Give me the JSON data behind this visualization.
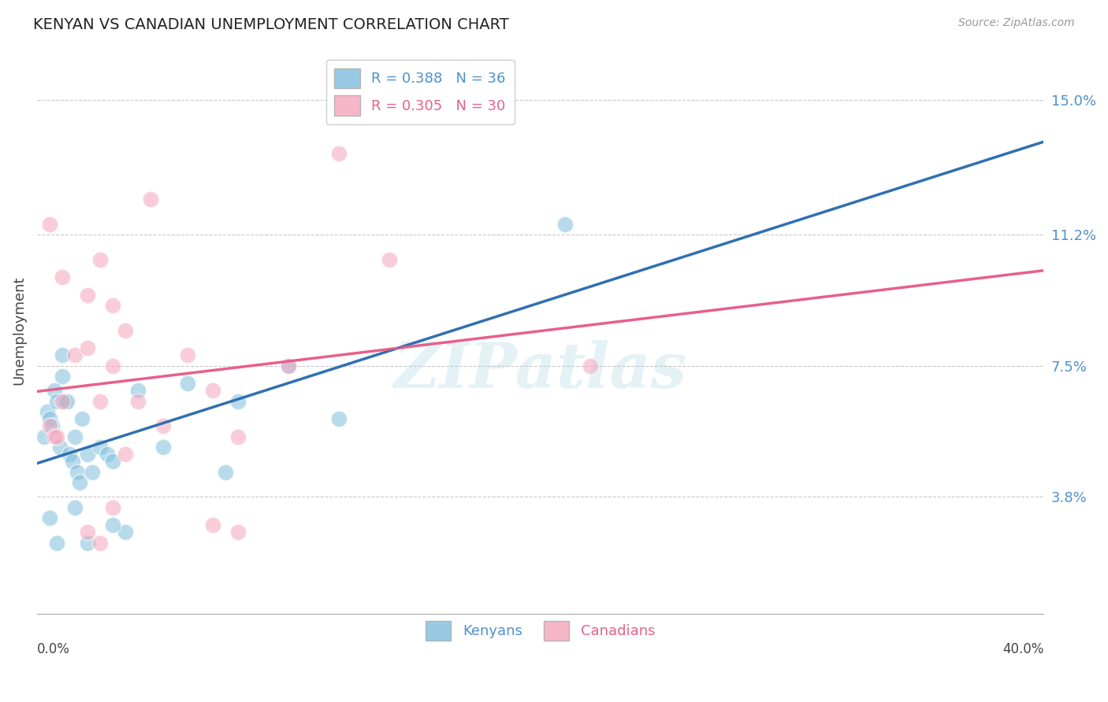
{
  "title": "KENYAN VS CANADIAN UNEMPLOYMENT CORRELATION CHART",
  "source": "Source: ZipAtlas.com",
  "ylabel": "Unemployment",
  "y_ticks": [
    3.8,
    7.5,
    11.2,
    15.0
  ],
  "x_min": 0.0,
  "x_max": 40.0,
  "y_min": 0.5,
  "y_max": 16.5,
  "legend_blue": "R = 0.388   N = 36",
  "legend_pink": "R = 0.305   N = 30",
  "blue_color": "#7fbfdd",
  "pink_color": "#f4a5bb",
  "blue_line_color": "#3070b0",
  "pink_line_color": "#e8608a",
  "blue_label_color": "#5090cc",
  "pink_label_color": "#e8608a",
  "watermark": "ZIPatlas",
  "blue_scatter_x": [
    0.3,
    0.4,
    0.5,
    0.6,
    0.7,
    0.8,
    0.9,
    1.0,
    1.1,
    1.2,
    1.3,
    1.4,
    1.5,
    1.6,
    1.7,
    1.8,
    2.0,
    2.2,
    2.5,
    2.8,
    3.0,
    3.5,
    4.0,
    5.0,
    6.0,
    7.5,
    8.0,
    10.0,
    12.0,
    0.5,
    0.8,
    1.0,
    1.5,
    2.0,
    3.0,
    21.0
  ],
  "blue_scatter_y": [
    5.5,
    6.2,
    6.0,
    5.8,
    6.8,
    6.5,
    5.2,
    7.2,
    6.5,
    6.5,
    5.0,
    4.8,
    5.5,
    4.5,
    4.2,
    6.0,
    5.0,
    4.5,
    5.2,
    5.0,
    4.8,
    2.8,
    6.8,
    5.2,
    7.0,
    4.5,
    6.5,
    7.5,
    6.0,
    3.2,
    2.5,
    7.8,
    3.5,
    2.5,
    3.0,
    11.5
  ],
  "pink_scatter_x": [
    0.5,
    0.7,
    0.8,
    1.0,
    1.5,
    2.0,
    2.5,
    3.0,
    3.5,
    4.0,
    5.0,
    6.0,
    7.0,
    8.0,
    10.0,
    12.0,
    0.5,
    1.0,
    2.0,
    2.5,
    3.0,
    3.5,
    4.5,
    14.0,
    22.0,
    2.0,
    2.5,
    3.0,
    7.0,
    8.0
  ],
  "pink_scatter_y": [
    5.8,
    5.5,
    5.5,
    6.5,
    7.8,
    8.0,
    6.5,
    7.5,
    5.0,
    6.5,
    5.8,
    7.8,
    6.8,
    5.5,
    7.5,
    13.5,
    11.5,
    10.0,
    9.5,
    10.5,
    9.2,
    8.5,
    12.2,
    10.5,
    7.5,
    2.8,
    2.5,
    3.5,
    3.0,
    2.8
  ]
}
